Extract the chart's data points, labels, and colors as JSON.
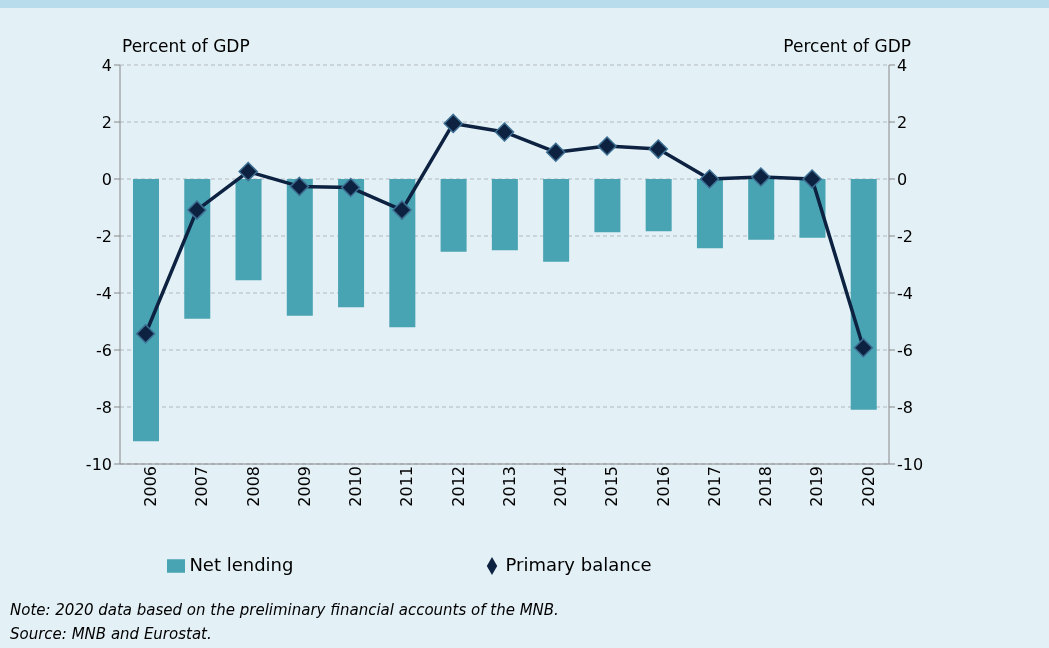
{
  "chart_data": {
    "type": "bar",
    "ylabel": "Percent of GDP",
    "y2label": "Percent of GDP",
    "categories": [
      "2006",
      "2007",
      "2008",
      "2009",
      "2010",
      "2011",
      "2012",
      "2013",
      "2014",
      "2015",
      "2016",
      "2017",
      "2018",
      "2019",
      "2020"
    ],
    "series": [
      {
        "name": "Net lending",
        "color": "#48a3b2",
        "values": [
          -9.2,
          -4.9,
          -3.55,
          -4.8,
          -4.5,
          -5.2,
          -2.55,
          -2.5,
          -2.9,
          -1.87,
          -1.83,
          -2.43,
          -2.13,
          -2.06,
          -8.1
        ]
      },
      {
        "name": "Primary balance",
        "type": "line",
        "color": "#0d2240",
        "marker": "diamond",
        "values": [
          -5.43,
          -1.09,
          0.26,
          -0.26,
          -0.3,
          -1.09,
          1.95,
          1.65,
          0.94,
          1.16,
          1.05,
          0,
          0.07,
          0,
          -5.92
        ]
      }
    ],
    "ylim": [
      -10,
      4
    ],
    "yticks": [
      -10,
      -8,
      -6,
      -4,
      -2,
      0,
      2,
      4
    ],
    "y2lim": [
      -10,
      4
    ],
    "y2ticks": [
      -10,
      -8,
      -6,
      -4,
      -2,
      0,
      2,
      4
    ],
    "grid": "y",
    "legend": "bottom",
    "annotations": [
      "Note: 2020 data based on the preliminary financial accounts of the MNB.",
      "Source: MNB and Eurostat."
    ]
  }
}
